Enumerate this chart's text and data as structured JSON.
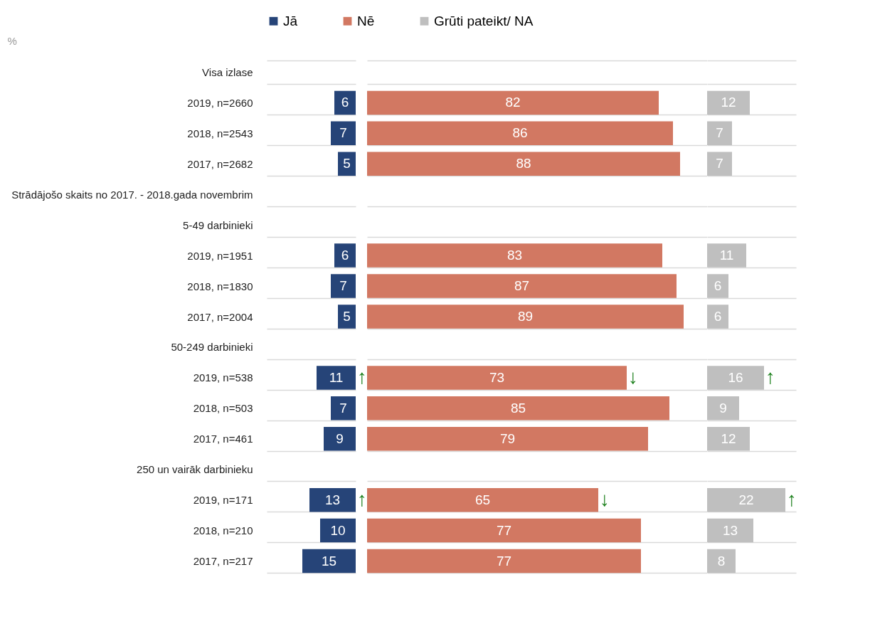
{
  "chart_data": [
    {
      "type": "bar",
      "orientation": "horizontal",
      "ylabel": "%",
      "tick_labels": "y",
      "data_labels": true,
      "grid": "y",
      "legend": "top",
      "xlim": [
        25,
        0
      ],
      "categories": [
        "Visa izlase",
        "2019, n=2660",
        "2018, n=2543",
        "2017, n=2682",
        "Strādājošo skaits no 2017.  - 2018.gada novembrim",
        "5-49 darbinieki",
        "2019, n=1951",
        "2018, n=1830",
        "2017, n=2004",
        "50-249 darbinieki",
        "2019, n=538",
        "2018, n=503",
        "2017, n=461",
        "250 un vairāk darbinieku",
        "2019, n=171",
        "2018, n=210",
        "2017, n=217"
      ],
      "series": [
        {
          "name": "Jā",
          "color": "#264478",
          "values": [
            null,
            6,
            7,
            5,
            null,
            null,
            6,
            7,
            5,
            null,
            11,
            7,
            9,
            null,
            13,
            10,
            15
          ]
        }
      ],
      "annotations": [
        {
          "text": "↑",
          "x": 0,
          "y": "2019, n=538"
        },
        {
          "text": "↑",
          "x": 0,
          "y": "2019, n=171"
        }
      ]
    },
    {
      "type": "bar",
      "orientation": "horizontal",
      "tick_labels": false,
      "data_labels": true,
      "grid": "y",
      "legend": "top",
      "xlim": [
        0,
        95.5
      ],
      "categories": [
        "Visa izlase",
        "2019, n=2660",
        "2018, n=2543",
        "2017, n=2682",
        "Strādājošo skaits no 2017.  - 2018.gada novembrim",
        "5-49 darbinieki",
        "2019, n=1951",
        "2018, n=1830",
        "2017, n=2004",
        "50-249 darbinieki",
        "2019, n=538",
        "2018, n=503",
        "2017, n=461",
        "250 un vairāk darbinieku",
        "2019, n=171",
        "2018, n=210",
        "2017, n=217"
      ],
      "series": [
        {
          "name": "Nē",
          "color": "#d27862",
          "values": [
            null,
            82,
            86,
            88,
            null,
            null,
            83,
            87,
            89,
            null,
            73,
            85,
            79,
            null,
            65,
            77,
            77
          ]
        }
      ],
      "annotations": [
        {
          "text": "↓",
          "x": 73,
          "y": "2019, n=538"
        },
        {
          "text": "↓",
          "x": 65,
          "y": "2019, n=171"
        }
      ]
    },
    {
      "type": "bar",
      "orientation": "horizontal",
      "tick_labels": false,
      "data_labels": true,
      "grid": "y",
      "legend": "top",
      "xlim": [
        0,
        25
      ],
      "categories": [
        "Visa izlase",
        "2019, n=2660",
        "2018, n=2543",
        "2017, n=2682",
        "Strādājošo skaits no 2017.  - 2018.gada novembrim",
        "5-49 darbinieki",
        "2019, n=1951",
        "2018, n=1830",
        "2017, n=2004",
        "50-249 darbinieki",
        "2019, n=538",
        "2018, n=503",
        "2017, n=461",
        "250 un vairāk darbinieku",
        "2019, n=171",
        "2018, n=210",
        "2017, n=217"
      ],
      "series": [
        {
          "name": "Grūti pateikt/ NA",
          "color": "#bfbfbf",
          "values": [
            null,
            12,
            7,
            7,
            null,
            null,
            11,
            6,
            6,
            null,
            16,
            9,
            12,
            null,
            22,
            13,
            8
          ]
        }
      ],
      "annotations": [
        {
          "text": "↑",
          "x": 16,
          "y": "2019, n=538"
        },
        {
          "text": "↑",
          "x": 22,
          "y": "2019, n=171"
        }
      ]
    }
  ]
}
